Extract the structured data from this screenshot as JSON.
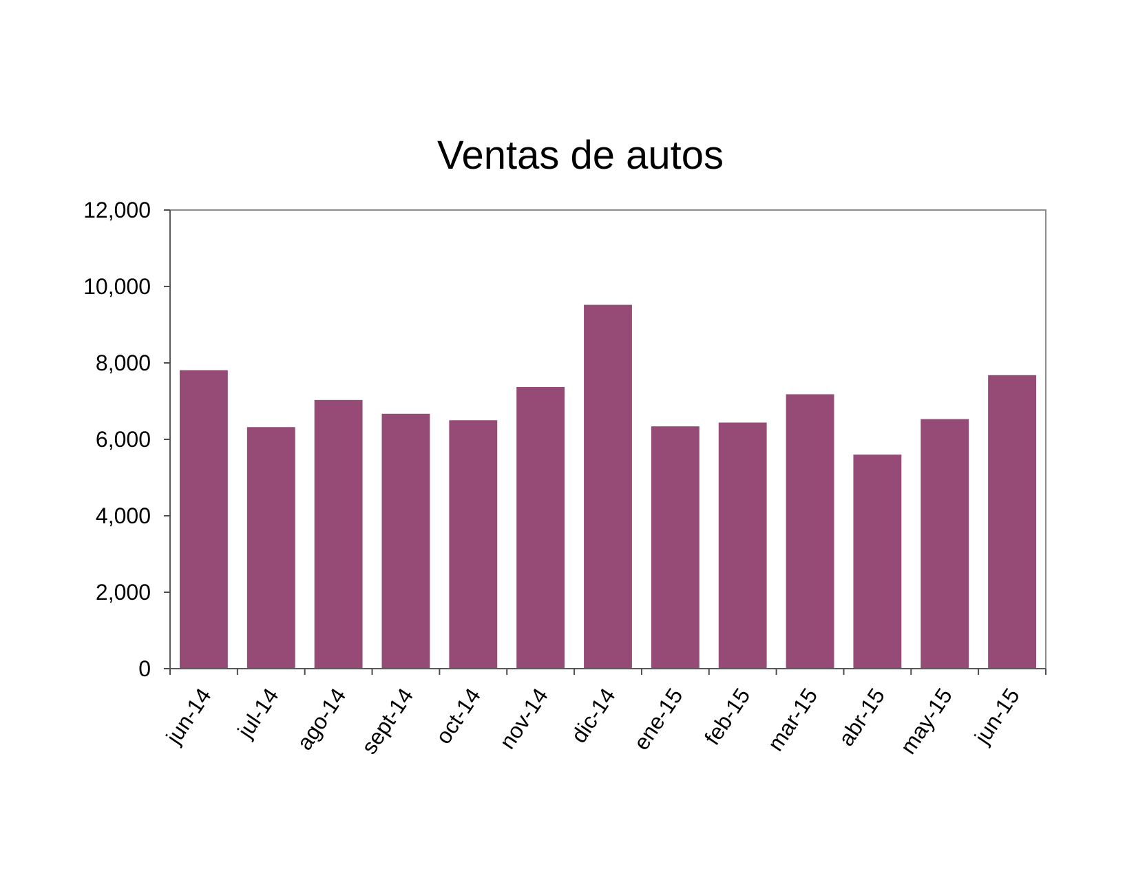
{
  "chart_data": {
    "type": "bar",
    "title": "Ventas de autos",
    "categories": [
      "jun-14",
      "jul-14",
      "ago-14",
      "sept-14",
      "oct-14",
      "nov-14",
      "dic-14",
      "ene-15",
      "feb-15",
      "mar-15",
      "abr-15",
      "may-15",
      "jun-15"
    ],
    "series": [
      {
        "values": [
          7810,
          6320,
          7030,
          6670,
          6500,
          7370,
          9520,
          6340,
          6440,
          7180,
          5600,
          6530,
          7680
        ]
      }
    ],
    "ylim": [
      0,
      12000
    ],
    "yticks": [
      0,
      2000,
      4000,
      6000,
      8000,
      10000,
      12000
    ],
    "ytick_labels": [
      "0",
      "2,000",
      "4,000",
      "6,000",
      "8,000",
      "10,000",
      "12,000"
    ],
    "grid": false,
    "legend": "none",
    "bar_color": "#954B76"
  }
}
